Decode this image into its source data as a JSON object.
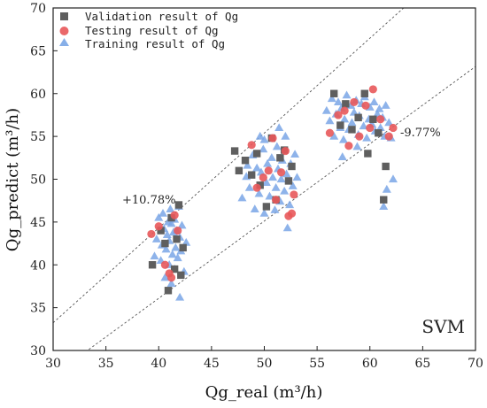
{
  "chart_data": {
    "type": "scatter",
    "xlabel": "Qg_real (m³/h)",
    "ylabel": "Qg_predict (m³/h)",
    "xlim": [
      30,
      70
    ],
    "ylim": [
      30,
      70
    ],
    "xticks": [
      30,
      35,
      40,
      45,
      50,
      55,
      60,
      65,
      70
    ],
    "yticks": [
      30,
      35,
      40,
      45,
      50,
      55,
      60,
      65,
      70
    ],
    "grid": false,
    "legend_position": "top-left",
    "model_label": "SVM",
    "reference_lines": [
      {
        "label": "+10.78%",
        "slope": 1.1078,
        "color": "#555555"
      },
      {
        "label": "-9.77%",
        "slope": 0.9023,
        "color": "#555555"
      }
    ],
    "series": [
      {
        "name": "Validation result of Qg",
        "marker": "square",
        "color": "#5f5f5f",
        "points": [
          [
            39.4,
            40.0
          ],
          [
            40.2,
            44.0
          ],
          [
            40.6,
            42.5
          ],
          [
            40.9,
            37.0
          ],
          [
            41.2,
            45.5
          ],
          [
            41.5,
            39.5
          ],
          [
            41.7,
            43.0
          ],
          [
            41.9,
            47.0
          ],
          [
            42.1,
            38.8
          ],
          [
            42.3,
            42.0
          ],
          [
            47.2,
            53.3
          ],
          [
            47.6,
            51.0
          ],
          [
            48.2,
            52.2
          ],
          [
            48.8,
            50.5
          ],
          [
            49.3,
            53.0
          ],
          [
            49.6,
            49.3
          ],
          [
            50.2,
            46.8
          ],
          [
            50.7,
            54.8
          ],
          [
            51.1,
            47.6
          ],
          [
            51.5,
            52.5
          ],
          [
            51.9,
            53.4
          ],
          [
            52.3,
            49.8
          ],
          [
            52.6,
            51.5
          ],
          [
            56.6,
            60.0
          ],
          [
            57.2,
            56.3
          ],
          [
            57.7,
            58.8
          ],
          [
            58.3,
            55.8
          ],
          [
            58.9,
            57.2
          ],
          [
            59.5,
            60.0
          ],
          [
            59.8,
            53.0
          ],
          [
            60.3,
            57.0
          ],
          [
            60.8,
            55.4
          ],
          [
            61.3,
            47.6
          ],
          [
            61.5,
            51.5
          ]
        ]
      },
      {
        "name": "Testing result of Qg",
        "marker": "circle",
        "color": "#e8585a",
        "points": [
          [
            39.3,
            43.6
          ],
          [
            40.0,
            44.5
          ],
          [
            40.6,
            40.0
          ],
          [
            41.0,
            39.0
          ],
          [
            41.2,
            38.5
          ],
          [
            41.5,
            45.8
          ],
          [
            41.8,
            44.0
          ],
          [
            48.8,
            54.0
          ],
          [
            49.3,
            49.0
          ],
          [
            49.9,
            50.2
          ],
          [
            50.4,
            51.0
          ],
          [
            50.8,
            54.8
          ],
          [
            51.1,
            47.6
          ],
          [
            51.6,
            50.8
          ],
          [
            52.0,
            53.3
          ],
          [
            52.3,
            45.7
          ],
          [
            52.6,
            46.0
          ],
          [
            52.8,
            48.2
          ],
          [
            56.2,
            55.4
          ],
          [
            57.0,
            57.5
          ],
          [
            57.6,
            58.0
          ],
          [
            58.0,
            53.9
          ],
          [
            58.5,
            59.0
          ],
          [
            59.0,
            55.0
          ],
          [
            59.6,
            58.6
          ],
          [
            60.0,
            56.0
          ],
          [
            60.3,
            60.5
          ],
          [
            61.0,
            57.0
          ],
          [
            61.8,
            55.0
          ],
          [
            62.2,
            56.0
          ]
        ]
      },
      {
        "name": "Training result of Qg",
        "marker": "triangle",
        "color": "#7aa6e6",
        "points": [
          [
            39.6,
            41.0
          ],
          [
            39.8,
            43.0
          ],
          [
            40.0,
            45.5
          ],
          [
            40.2,
            40.5
          ],
          [
            40.3,
            42.3
          ],
          [
            40.4,
            46.0
          ],
          [
            40.5,
            44.2
          ],
          [
            40.6,
            38.5
          ],
          [
            40.7,
            41.8
          ],
          [
            40.8,
            43.5
          ],
          [
            40.9,
            45.0
          ],
          [
            41.0,
            40.0
          ],
          [
            41.0,
            42.8
          ],
          [
            41.1,
            46.5
          ],
          [
            41.2,
            37.8
          ],
          [
            41.2,
            44.8
          ],
          [
            41.3,
            41.2
          ],
          [
            41.4,
            43.8
          ],
          [
            41.5,
            39.5
          ],
          [
            41.5,
            45.3
          ],
          [
            41.6,
            42.0
          ],
          [
            41.7,
            44.0
          ],
          [
            41.8,
            40.8
          ],
          [
            41.9,
            46.8
          ],
          [
            42.0,
            43.2
          ],
          [
            42.0,
            36.2
          ],
          [
            42.1,
            41.6
          ],
          [
            42.2,
            44.6
          ],
          [
            42.4,
            39.2
          ],
          [
            42.6,
            42.6
          ],
          [
            47.9,
            47.8
          ],
          [
            48.3,
            50.3
          ],
          [
            48.6,
            49.0
          ],
          [
            48.9,
            52.8
          ],
          [
            49.1,
            46.5
          ],
          [
            49.3,
            51.3
          ],
          [
            49.5,
            48.3
          ],
          [
            49.7,
            50.8
          ],
          [
            49.9,
            53.5
          ],
          [
            50.0,
            46.0
          ],
          [
            50.2,
            49.6
          ],
          [
            50.3,
            51.8
          ],
          [
            50.5,
            48.0
          ],
          [
            50.7,
            52.5
          ],
          [
            50.8,
            50.2
          ],
          [
            51.0,
            46.4
          ],
          [
            51.1,
            49.0
          ],
          [
            51.2,
            53.8
          ],
          [
            51.3,
            51.2
          ],
          [
            51.5,
            47.4
          ],
          [
            51.6,
            50.0
          ],
          [
            51.7,
            52.2
          ],
          [
            51.9,
            48.6
          ],
          [
            52.0,
            55.0
          ],
          [
            52.1,
            50.6
          ],
          [
            52.2,
            44.3
          ],
          [
            52.4,
            47.0
          ],
          [
            52.5,
            51.8
          ],
          [
            52.7,
            49.2
          ],
          [
            52.9,
            52.9
          ],
          [
            51.4,
            56.0
          ],
          [
            50.0,
            54.6
          ],
          [
            48.4,
            51.6
          ],
          [
            53.1,
            50.2
          ],
          [
            49.6,
            55.0
          ],
          [
            55.9,
            58.0
          ],
          [
            56.2,
            56.8
          ],
          [
            56.4,
            59.4
          ],
          [
            56.6,
            55.0
          ],
          [
            56.8,
            57.6
          ],
          [
            57.0,
            59.0
          ],
          [
            57.2,
            56.0
          ],
          [
            57.3,
            58.3
          ],
          [
            57.5,
            54.6
          ],
          [
            57.6,
            57.0
          ],
          [
            57.8,
            59.8
          ],
          [
            58.0,
            55.8
          ],
          [
            58.2,
            58.6
          ],
          [
            58.3,
            56.6
          ],
          [
            58.5,
            57.8
          ],
          [
            58.7,
            59.2
          ],
          [
            58.9,
            55.2
          ],
          [
            59.0,
            57.4
          ],
          [
            59.2,
            58.8
          ],
          [
            59.4,
            56.2
          ],
          [
            59.5,
            59.6
          ],
          [
            59.7,
            54.8
          ],
          [
            59.9,
            57.0
          ],
          [
            60.0,
            58.4
          ],
          [
            60.2,
            56.4
          ],
          [
            60.4,
            59.0
          ],
          [
            60.5,
            55.6
          ],
          [
            60.7,
            57.6
          ],
          [
            60.9,
            58.2
          ],
          [
            61.0,
            56.0
          ],
          [
            61.2,
            57.2
          ],
          [
            61.4,
            55.0
          ],
          [
            61.5,
            58.6
          ],
          [
            61.6,
            48.8
          ],
          [
            61.8,
            56.6
          ],
          [
            62.0,
            54.8
          ],
          [
            62.2,
            50.0
          ],
          [
            61.3,
            46.8
          ],
          [
            57.4,
            52.6
          ],
          [
            58.8,
            53.8
          ]
        ]
      }
    ]
  }
}
